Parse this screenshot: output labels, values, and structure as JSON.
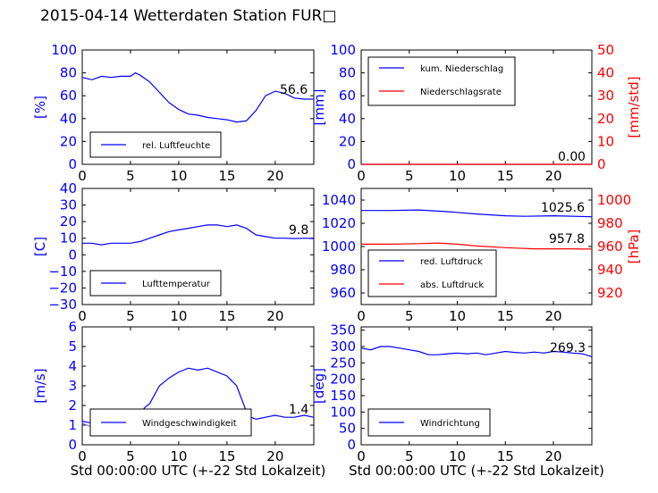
{
  "title": "2015-04-14 Wetterdaten Station FUR□",
  "xlabel": "Std 00:00:00 UTC (+-22 Std Lokalzeit)",
  "colors": {
    "blue": "#0000ff",
    "red": "#ff0000",
    "lightblue": "#7777ff"
  },
  "chart_data": [
    {
      "type": "line",
      "id": "humidity",
      "xlim": [
        0,
        24
      ],
      "ylim": [
        0,
        100
      ],
      "ylabel": "[%]",
      "xticks": [
        "0",
        "5",
        "10",
        "15",
        "20"
      ],
      "yticks": [
        "0",
        "20",
        "40",
        "60",
        "80",
        "100"
      ],
      "legend_position": "lower-left",
      "current_value": "56.6",
      "series": [
        {
          "name": "rel. Luftfeuchte",
          "color": "#0000ff",
          "x": [
            0,
            1,
            2,
            3,
            4,
            5,
            5.5,
            6,
            7,
            8,
            9,
            10,
            11,
            12,
            13,
            14,
            15,
            16,
            17,
            18,
            19,
            20,
            21,
            22,
            23,
            24
          ],
          "y": [
            76,
            74,
            77,
            76,
            77,
            77,
            80,
            78,
            72,
            63,
            54,
            48,
            44,
            43,
            41,
            40,
            39,
            37,
            38,
            47,
            60,
            64,
            62,
            58,
            57,
            57
          ]
        }
      ]
    },
    {
      "type": "line",
      "id": "precipitation",
      "xlim": [
        0,
        24
      ],
      "ylim": [
        0,
        100
      ],
      "ylabel": "[mm]",
      "ylim_right": [
        0,
        50
      ],
      "ylabel_right": "[mm/std]",
      "xticks": [
        "0",
        "5",
        "10",
        "15",
        "20"
      ],
      "yticks": [
        "0",
        "20",
        "40",
        "60",
        "80",
        "100"
      ],
      "yticks_right": [
        "0",
        "10",
        "20",
        "30",
        "40",
        "50"
      ],
      "legend_position": "upper-left",
      "current_value": "0.0",
      "current_value_right": "0",
      "series": [
        {
          "name": "kum. Niederschlag",
          "color": "#0000ff",
          "axis": "left",
          "x": [
            0,
            24
          ],
          "y": [
            0,
            0
          ]
        },
        {
          "name": "Niederschlagsrate",
          "color": "#ff0000",
          "axis": "right",
          "x": [
            0,
            24
          ],
          "y": [
            0,
            0
          ]
        }
      ]
    },
    {
      "type": "line",
      "id": "temperature",
      "xlim": [
        0,
        24
      ],
      "ylim": [
        -30,
        40
      ],
      "ylabel": "[C]",
      "xticks": [
        "0",
        "5",
        "10",
        "15",
        "20"
      ],
      "yticks": [
        "−30",
        "−20",
        "−10",
        "0",
        "10",
        "20",
        "30",
        "40"
      ],
      "legend_position": "lower-left",
      "current_value": "9.8",
      "series": [
        {
          "name": "Lufttemperatur",
          "color": "#0000ff",
          "x": [
            0,
            1,
            2,
            3,
            4,
            5,
            6,
            7,
            8,
            9,
            10,
            11,
            12,
            13,
            14,
            15,
            16,
            17,
            18,
            19,
            20,
            21,
            22,
            23,
            24
          ],
          "y": [
            7,
            7,
            6,
            7,
            7,
            7,
            8,
            10,
            12,
            14,
            15,
            16,
            17,
            18,
            18,
            17,
            18,
            16,
            12,
            11,
            10,
            10,
            9.8,
            10,
            9.8
          ]
        }
      ]
    },
    {
      "type": "line",
      "id": "pressure",
      "xlim": [
        0,
        24
      ],
      "ylim": [
        950,
        1050
      ],
      "ylim_right": [
        910,
        1010
      ],
      "ylabel_right": "[hPa]",
      "xticks": [
        "0",
        "5",
        "10",
        "15",
        "20"
      ],
      "yticks": [
        "960",
        "980",
        "1000",
        "1020",
        "1040"
      ],
      "yticks_right": [
        "920",
        "940",
        "960",
        "980",
        "1000"
      ],
      "legend_position": "lower-left",
      "current_value": "1025.6",
      "current_value_right": "957.8",
      "series": [
        {
          "name": "red. Luftdruck",
          "color": "#0000ff",
          "axis": "left",
          "x": [
            0,
            3,
            6,
            9,
            12,
            15,
            17,
            20,
            24
          ],
          "y": [
            1031,
            1031,
            1031.5,
            1030,
            1028,
            1026.5,
            1026,
            1026.5,
            1025.6
          ]
        },
        {
          "name": "abs. Luftdruck",
          "color": "#ff0000",
          "axis": "right",
          "x": [
            0,
            3,
            6,
            8,
            10,
            12,
            15,
            18,
            21,
            24
          ],
          "y": [
            962,
            962,
            962.5,
            963,
            962,
            960.5,
            959,
            958,
            958,
            957.8
          ]
        }
      ]
    },
    {
      "type": "line",
      "id": "wind",
      "xlim": [
        0,
        24
      ],
      "ylim": [
        0,
        6
      ],
      "ylabel": "[m/s]",
      "xticks": [
        "0",
        "5",
        "10",
        "15",
        "20"
      ],
      "yticks": [
        "0",
        "1",
        "2",
        "3",
        "4",
        "5",
        "6"
      ],
      "legend_position": "lower-left",
      "current_value": "1.4",
      "series": [
        {
          "name": "Windgeschwindigkeit",
          "color": "#0000ff",
          "x": [
            0,
            1,
            2,
            3,
            4,
            5,
            6,
            6.5,
            7,
            8,
            9,
            10,
            11,
            12,
            13,
            14,
            15,
            16,
            17,
            17.5,
            18,
            19,
            20,
            21,
            22,
            23,
            24
          ],
          "y": [
            1.2,
            1.1,
            1.2,
            1.3,
            1.2,
            1.5,
            1.6,
            1.9,
            2.1,
            3.0,
            3.4,
            3.7,
            3.9,
            3.8,
            3.9,
            3.7,
            3.5,
            3.0,
            1.7,
            1.4,
            1.3,
            1.4,
            1.5,
            1.4,
            1.4,
            1.5,
            1.4
          ]
        },
        {
          "name": "",
          "color": "#7777ff",
          "x": [
            0,
            1,
            2,
            3,
            4,
            5,
            6
          ],
          "y": [
            1.1,
            0.9,
            1.3,
            1.0,
            1.2,
            1.4,
            1.3
          ]
        }
      ]
    },
    {
      "type": "line",
      "id": "direction",
      "xlim": [
        0,
        24
      ],
      "ylim": [
        0,
        360
      ],
      "ylabel": "[deg]",
      "xticks": [
        "0",
        "5",
        "10",
        "15",
        "20"
      ],
      "yticks": [
        "0",
        "50",
        "100",
        "150",
        "200",
        "250",
        "300",
        "350"
      ],
      "legend_position": "lower-left",
      "current_value": "269.3",
      "series": [
        {
          "name": "Windrichtung",
          "color": "#0000ff",
          "x": [
            0,
            1,
            2,
            3,
            4,
            5,
            6,
            7,
            8,
            9,
            10,
            11,
            12,
            13,
            14,
            15,
            16,
            17,
            18,
            19,
            20,
            21,
            22,
            23,
            24
          ],
          "y": [
            295,
            290,
            300,
            300,
            295,
            290,
            285,
            275,
            275,
            278,
            280,
            278,
            280,
            275,
            280,
            285,
            282,
            280,
            283,
            280,
            285,
            283,
            280,
            278,
            269
          ]
        }
      ]
    }
  ]
}
